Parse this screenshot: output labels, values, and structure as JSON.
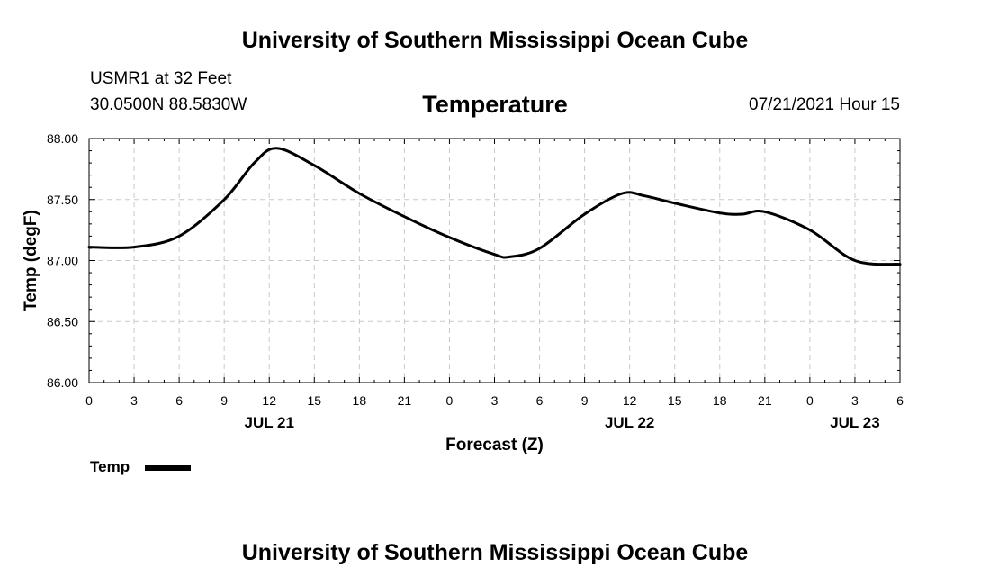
{
  "header": {
    "title": "University of Southern Mississippi Ocean Cube",
    "station": "USMR1 at 32 Feet",
    "coords": "30.0500N  88.5830W",
    "chart_title": "Temperature",
    "datetime": "07/21/2021 Hour 15"
  },
  "footer": {
    "title": "University of Southern Mississippi Ocean Cube"
  },
  "legend": {
    "label": "Temp",
    "color": "#000000"
  },
  "chart_data": {
    "type": "line",
    "title": "Temperature",
    "xlabel": "Forecast (Z)",
    "ylabel": "Temp (degF)",
    "ylim": [
      86.0,
      88.0
    ],
    "xlim": [
      0,
      54
    ],
    "grid": true,
    "y_ticks": [
      {
        "value": 86.0,
        "label": "86.00"
      },
      {
        "value": 86.5,
        "label": "86.50"
      },
      {
        "value": 87.0,
        "label": "87.00"
      },
      {
        "value": 87.5,
        "label": "87.50"
      },
      {
        "value": 88.0,
        "label": "88.00"
      }
    ],
    "x_ticks": [
      {
        "value": 0,
        "label": "0"
      },
      {
        "value": 3,
        "label": "3"
      },
      {
        "value": 6,
        "label": "6"
      },
      {
        "value": 9,
        "label": "9"
      },
      {
        "value": 12,
        "label": "12"
      },
      {
        "value": 15,
        "label": "15"
      },
      {
        "value": 18,
        "label": "18"
      },
      {
        "value": 21,
        "label": "21"
      },
      {
        "value": 24,
        "label": "0"
      },
      {
        "value": 27,
        "label": "3"
      },
      {
        "value": 30,
        "label": "6"
      },
      {
        "value": 33,
        "label": "9"
      },
      {
        "value": 36,
        "label": "12"
      },
      {
        "value": 39,
        "label": "15"
      },
      {
        "value": 42,
        "label": "18"
      },
      {
        "value": 45,
        "label": "21"
      },
      {
        "value": 48,
        "label": "0"
      },
      {
        "value": 51,
        "label": "3"
      },
      {
        "value": 54,
        "label": "6"
      }
    ],
    "date_labels": [
      {
        "value": 12,
        "label": "JUL 21"
      },
      {
        "value": 36,
        "label": "JUL 22"
      },
      {
        "value": 51,
        "label": "JUL 23"
      }
    ],
    "series": [
      {
        "name": "Temp",
        "x": [
          0,
          3,
          6,
          9,
          11,
          12.5,
          15,
          18,
          21,
          24,
          27,
          28,
          30,
          33,
          35.5,
          37,
          39,
          42,
          43.5,
          45,
          48,
          51,
          54
        ],
        "values": [
          87.11,
          87.11,
          87.2,
          87.5,
          87.8,
          87.92,
          87.78,
          87.55,
          87.36,
          87.19,
          87.05,
          87.03,
          87.1,
          87.38,
          87.55,
          87.53,
          87.47,
          87.39,
          87.38,
          87.4,
          87.25,
          87.0,
          86.97
        ]
      }
    ]
  }
}
